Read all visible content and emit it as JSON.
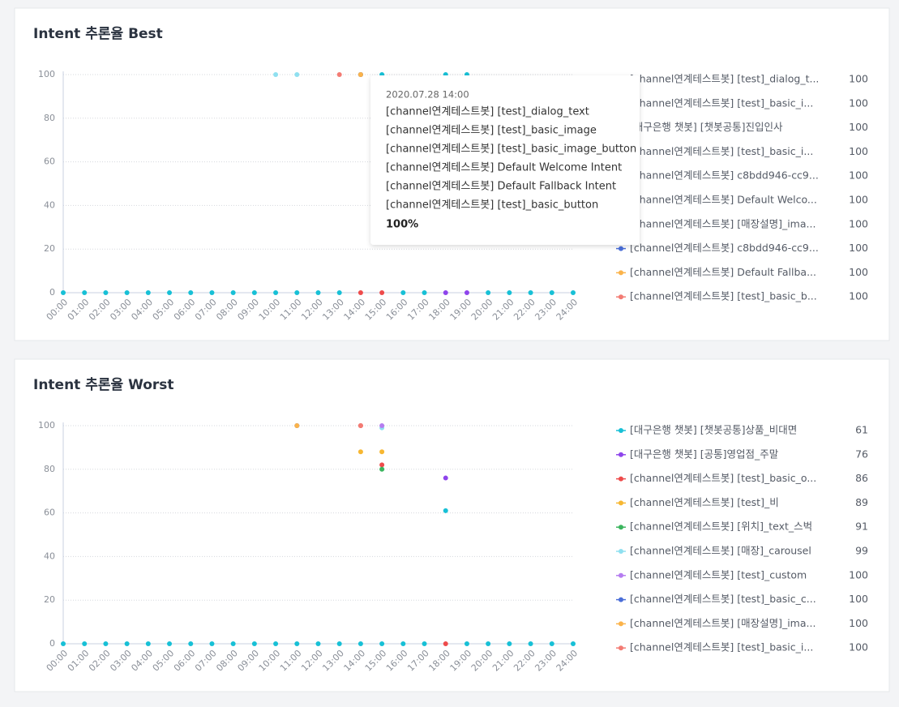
{
  "chart_data": [
    {
      "type": "line",
      "title": "Intent 추론율 Best",
      "categories": [
        "00:00",
        "01:00",
        "02:00",
        "03:00",
        "04:00",
        "05:00",
        "06:00",
        "07:00",
        "08:00",
        "09:00",
        "10:00",
        "11:00",
        "12:00",
        "13:00",
        "14:00",
        "15:00",
        "16:00",
        "17:00",
        "18:00",
        "19:00",
        "20:00",
        "21:00",
        "22:00",
        "23:00",
        "24:00"
      ],
      "ylim": [
        0,
        100
      ],
      "yticks": [
        0,
        20,
        40,
        60,
        80,
        100
      ],
      "grid": true,
      "series": [
        {
          "name": "[channel연계테스트봇] [test]_dialog_t...",
          "color": "#17c0d6",
          "total": 100,
          "values": [
            0,
            0,
            0,
            0,
            0,
            0,
            0,
            0,
            0,
            0,
            0,
            0,
            0,
            0,
            null,
            100,
            0,
            0,
            100,
            100,
            0,
            0,
            0,
            0,
            0
          ]
        },
        {
          "name": "[channel연계테스트봇] [test]_basic_i...",
          "color": "#8e44ec",
          "total": 100,
          "values": [
            null,
            null,
            null,
            null,
            null,
            null,
            null,
            null,
            null,
            null,
            null,
            null,
            null,
            null,
            null,
            null,
            null,
            null,
            0,
            0,
            null,
            null,
            null,
            null,
            null
          ]
        },
        {
          "name": "[대구은행 챗봇] [챗봇공통]진입인사",
          "color": "#8fe0f0",
          "total": 100,
          "values": [
            null,
            null,
            null,
            null,
            null,
            null,
            null,
            null,
            null,
            null,
            100,
            100,
            null,
            null,
            null,
            null,
            null,
            null,
            null,
            null,
            null,
            null,
            null,
            null,
            null
          ]
        },
        {
          "name": "[channel연계테스트봇] [test]_basic_i...",
          "color": "#ee4b4b",
          "total": 100,
          "values": [
            null,
            null,
            null,
            null,
            null,
            null,
            null,
            null,
            null,
            null,
            null,
            null,
            null,
            null,
            0,
            0,
            null,
            null,
            null,
            null,
            null,
            null,
            null,
            null,
            null
          ]
        },
        {
          "name": "[channel연계테스트봇] c8bdd946-cc9...",
          "color": "#3bb55e",
          "total": 100,
          "values": [
            null,
            null,
            null,
            null,
            null,
            null,
            null,
            null,
            null,
            null,
            null,
            null,
            null,
            null,
            100,
            null,
            null,
            null,
            null,
            null,
            null,
            null,
            null,
            null,
            null
          ]
        },
        {
          "name": "[channel연계테스트봇] Default Welco...",
          "color": "#b57cf0",
          "total": 100,
          "values": [
            null,
            null,
            null,
            null,
            null,
            null,
            null,
            null,
            null,
            null,
            null,
            null,
            null,
            null,
            100,
            null,
            null,
            null,
            null,
            null,
            null,
            null,
            null,
            null,
            null
          ]
        },
        {
          "name": "[channel연계테스트봇] [매장설명]_ima...",
          "color": "#f7b731",
          "total": 100,
          "values": [
            null,
            null,
            null,
            null,
            null,
            null,
            null,
            null,
            null,
            null,
            null,
            null,
            null,
            null,
            100,
            null,
            null,
            null,
            null,
            null,
            null,
            null,
            null,
            null,
            null
          ]
        },
        {
          "name": "[channel연계테스트봇] c8bdd946-cc9...",
          "color": "#4a6ed8",
          "total": 100,
          "values": [
            null,
            null,
            null,
            null,
            null,
            null,
            null,
            null,
            null,
            null,
            null,
            null,
            null,
            null,
            100,
            null,
            null,
            null,
            null,
            null,
            null,
            null,
            null,
            null,
            null
          ]
        },
        {
          "name": "[channel연계테스트봇] Default Fallba...",
          "color": "#fbb34a",
          "total": 100,
          "values": [
            null,
            null,
            null,
            null,
            null,
            null,
            null,
            null,
            null,
            null,
            null,
            null,
            null,
            null,
            100,
            null,
            null,
            null,
            null,
            null,
            null,
            null,
            null,
            null,
            null
          ]
        },
        {
          "name": "[channel연계테스트봇] [test]_basic_b...",
          "color": "#f37b73",
          "total": 100,
          "values": [
            null,
            null,
            null,
            null,
            null,
            null,
            null,
            null,
            null,
            null,
            null,
            null,
            null,
            100,
            null,
            null,
            null,
            null,
            null,
            null,
            null,
            null,
            null,
            null,
            null
          ]
        }
      ]
    },
    {
      "type": "line",
      "title": "Intent 추론율 Worst",
      "categories": [
        "00:00",
        "01:00",
        "02:00",
        "03:00",
        "04:00",
        "05:00",
        "06:00",
        "07:00",
        "08:00",
        "09:00",
        "10:00",
        "11:00",
        "12:00",
        "13:00",
        "14:00",
        "15:00",
        "16:00",
        "17:00",
        "18:00",
        "19:00",
        "20:00",
        "21:00",
        "22:00",
        "23:00",
        "24:00"
      ],
      "ylim": [
        0,
        100
      ],
      "yticks": [
        0,
        20,
        40,
        60,
        80,
        100
      ],
      "grid": true,
      "series": [
        {
          "name": "[대구은행 챗봇] [챗봇공통]상품_비대면",
          "color": "#17c0d6",
          "total": 61,
          "values": [
            0,
            0,
            0,
            0,
            0,
            0,
            0,
            0,
            0,
            0,
            0,
            0,
            0,
            0,
            0,
            0,
            0,
            0,
            61,
            0,
            0,
            0,
            0,
            0,
            0
          ]
        },
        {
          "name": "[대구은행 챗봇] [공통]영업점_주말",
          "color": "#8e44ec",
          "total": 76,
          "values": [
            null,
            null,
            null,
            null,
            null,
            null,
            null,
            null,
            null,
            null,
            null,
            null,
            null,
            null,
            null,
            null,
            null,
            null,
            76,
            null,
            null,
            null,
            null,
            null,
            null
          ]
        },
        {
          "name": "[channel연계테스트봇] [test]_basic_o...",
          "color": "#ee4b4b",
          "total": 86,
          "values": [
            null,
            null,
            null,
            null,
            null,
            null,
            null,
            null,
            null,
            null,
            null,
            null,
            null,
            null,
            100,
            82,
            null,
            null,
            0,
            null,
            null,
            null,
            null,
            null,
            null
          ]
        },
        {
          "name": "[channel연계테스트봇] [test]_비",
          "color": "#f7b731",
          "total": 89,
          "values": [
            null,
            null,
            null,
            null,
            null,
            null,
            null,
            null,
            null,
            null,
            null,
            null,
            null,
            null,
            88,
            88,
            null,
            null,
            null,
            null,
            null,
            null,
            null,
            null,
            null
          ]
        },
        {
          "name": "[channel연계테스트봇] [위치]_text_스벅",
          "color": "#3bb55e",
          "total": 91,
          "values": [
            null,
            null,
            null,
            null,
            null,
            null,
            null,
            null,
            null,
            null,
            null,
            null,
            null,
            null,
            null,
            80,
            null,
            null,
            null,
            null,
            null,
            null,
            null,
            null,
            null
          ]
        },
        {
          "name": "[channel연계테스트봇] [매장]_carousel",
          "color": "#8fe0f0",
          "total": 99,
          "values": [
            null,
            null,
            null,
            null,
            null,
            null,
            null,
            null,
            null,
            null,
            null,
            null,
            null,
            null,
            null,
            99,
            null,
            null,
            null,
            null,
            null,
            null,
            null,
            null,
            null
          ]
        },
        {
          "name": "[channel연계테스트봇] [test]_custom",
          "color": "#b57cf0",
          "total": 100,
          "values": [
            null,
            null,
            null,
            null,
            null,
            null,
            null,
            null,
            null,
            null,
            null,
            null,
            null,
            null,
            null,
            100,
            null,
            null,
            null,
            null,
            null,
            null,
            null,
            null,
            null
          ]
        },
        {
          "name": "[channel연계테스트봇] [test]_basic_c...",
          "color": "#4a6ed8",
          "total": 100,
          "values": [
            null,
            null,
            null,
            null,
            null,
            null,
            null,
            null,
            null,
            null,
            null,
            100,
            null,
            null,
            null,
            null,
            null,
            null,
            null,
            null,
            null,
            null,
            null,
            null,
            null
          ]
        },
        {
          "name": "[channel연계테스트봇] [매장설명]_ima...",
          "color": "#fbb34a",
          "total": 100,
          "values": [
            null,
            null,
            null,
            null,
            null,
            null,
            null,
            null,
            null,
            null,
            null,
            100,
            null,
            null,
            null,
            null,
            null,
            null,
            null,
            null,
            null,
            null,
            null,
            null,
            null
          ]
        },
        {
          "name": "[channel연계테스트봇] [test]_basic_i...",
          "color": "#f37b73",
          "total": 100,
          "values": [
            null,
            null,
            null,
            null,
            null,
            null,
            null,
            null,
            null,
            null,
            null,
            null,
            null,
            null,
            100,
            null,
            null,
            null,
            null,
            null,
            null,
            null,
            null,
            null,
            null
          ]
        }
      ]
    }
  ],
  "tooltip": {
    "title": "2020.07.28 14:00",
    "lines": [
      "[channel연계테스트봇] [test]_dialog_text",
      "[channel연계테스트봇] [test]_basic_image",
      "[channel연계테스트봇] [test]_basic_image_button",
      "[channel연계테스트봇] Default Welcome Intent",
      "[channel연계테스트봇] Default Fallback Intent",
      "[channel연계테스트봇] [test]_basic_button"
    ],
    "value": "100%"
  }
}
